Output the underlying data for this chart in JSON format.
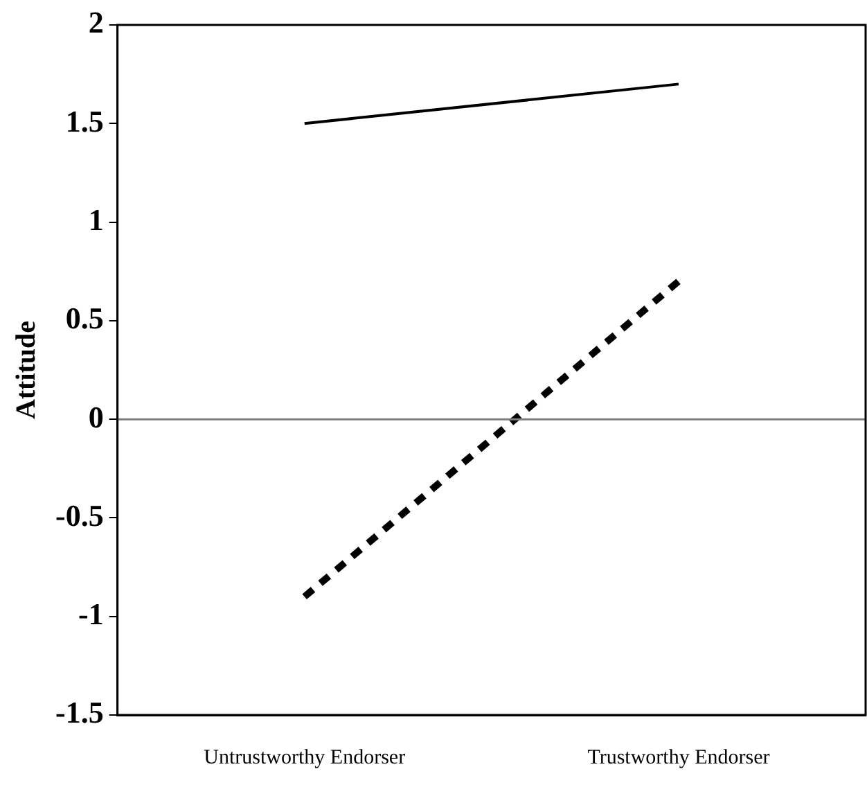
{
  "chart_data": {
    "type": "line",
    "ylabel": "Attitude",
    "categories": [
      "Untrustworthy Endorser",
      "Trustworthy Endorser"
    ],
    "series": [
      {
        "color": "#000000",
        "values": [
          1.5,
          1.7
        ],
        "line_style": "solid"
      },
      {
        "color": "#000000",
        "values": [
          -0.9,
          0.7
        ],
        "line_style": "dashed"
      }
    ],
    "ylim": [
      -1.5,
      2
    ],
    "yticks": [
      -1.5,
      -1,
      -0.5,
      0,
      0.5,
      1,
      1.5,
      2
    ],
    "ref_lines": [
      {
        "axis": "y",
        "value": 0,
        "color": "#808080"
      }
    ],
    "grid": false,
    "legend": false,
    "marker": "none"
  }
}
